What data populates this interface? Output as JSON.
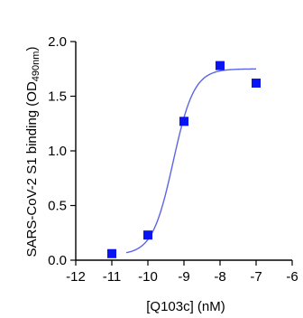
{
  "chart_data": {
    "type": "scatter",
    "xlabel": "[Q103c] (nM)",
    "ylabel_main": "SARS-CoV-2 S1 binding (OD",
    "ylabel_sub": "490nm",
    "ylabel_end": ")",
    "xlim": [
      -12,
      -6
    ],
    "ylim": [
      0,
      2
    ],
    "x_ticks": [
      -12,
      -11,
      -10,
      -9,
      -8,
      -7,
      -6
    ],
    "x_tick_labels": [
      "-12",
      "-11",
      "-10",
      "-9",
      "-8",
      "-7",
      "-6"
    ],
    "y_ticks": [
      0,
      0.5,
      1,
      1.5,
      2
    ],
    "y_tick_labels": [
      "0.0",
      "0.5",
      "1.0",
      "1.5",
      "2.0"
    ],
    "points": [
      {
        "x": -11,
        "y": 0.06
      },
      {
        "x": -10,
        "y": 0.23
      },
      {
        "x": -9,
        "y": 1.27
      },
      {
        "x": -8,
        "y": 1.78
      },
      {
        "x": -7,
        "y": 1.62
      }
    ],
    "fit": {
      "model": "sigmoidal dose-response",
      "bottom": 0.05,
      "top": 1.75,
      "logEC50": -9.3,
      "hill": 1.5,
      "x_range": [
        -10.6,
        -7
      ]
    },
    "colors": {
      "points": "#0a14f0",
      "fit_line": "#5a66e6",
      "axes": "#000000"
    }
  }
}
